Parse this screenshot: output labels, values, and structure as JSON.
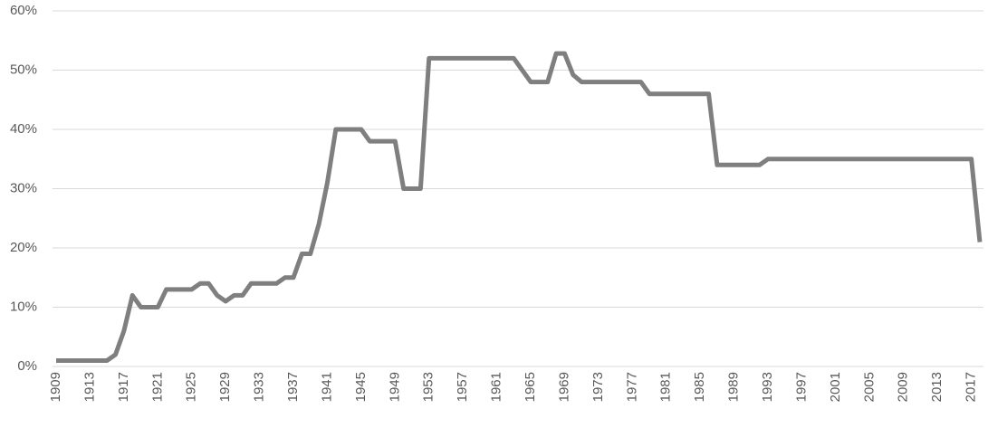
{
  "chart_data": {
    "type": "line",
    "categories": [
      "1909",
      null,
      null,
      null,
      "1913",
      null,
      null,
      null,
      "1917",
      null,
      null,
      null,
      "1921",
      null,
      null,
      null,
      "1925",
      null,
      null,
      null,
      "1929",
      null,
      null,
      null,
      "1933",
      null,
      null,
      null,
      "1937",
      null,
      null,
      null,
      "1941",
      null,
      null,
      null,
      "1945",
      null,
      null,
      null,
      "1949",
      null,
      null,
      null,
      "1953",
      null,
      null,
      null,
      "1957",
      null,
      null,
      null,
      "1961",
      null,
      null,
      null,
      "1965",
      null,
      null,
      null,
      "1969",
      null,
      null,
      null,
      "1973",
      null,
      null,
      null,
      "1977",
      null,
      null,
      null,
      "1981",
      null,
      null,
      null,
      "1985",
      null,
      null,
      null,
      "1989",
      null,
      null,
      null,
      "1993",
      null,
      null,
      null,
      "1997",
      null,
      null,
      null,
      "2001",
      null,
      null,
      null,
      "2005",
      null,
      null,
      null,
      "2009",
      null,
      null,
      null,
      "2013",
      null,
      null,
      null,
      "2017",
      null
    ],
    "values": [
      1,
      1,
      1,
      1,
      1,
      1,
      1,
      2,
      6,
      12,
      10,
      10,
      10,
      13,
      13,
      13,
      13,
      14,
      14,
      12,
      11,
      12,
      12,
      14,
      14,
      14,
      14,
      15,
      15,
      19,
      19,
      24,
      31,
      40,
      40,
      40,
      40,
      38,
      38,
      38,
      38,
      30,
      30,
      30,
      52,
      52,
      52,
      52,
      52,
      52,
      52,
      52,
      52,
      52,
      52,
      50,
      48,
      48,
      48,
      52.8,
      52.8,
      49.2,
      48,
      48,
      48,
      48,
      48,
      48,
      48,
      48,
      46,
      46,
      46,
      46,
      46,
      46,
      46,
      46,
      34,
      34,
      34,
      34,
      34,
      34,
      35,
      35,
      35,
      35,
      35,
      35,
      35,
      35,
      35,
      35,
      35,
      35,
      35,
      35,
      35,
      35,
      35,
      35,
      35,
      35,
      35,
      35,
      35,
      35,
      35,
      21
    ],
    "color": "#7f7f7f",
    "ylim": [
      0,
      60
    ],
    "yticks": [
      {
        "value": 0,
        "label": "0%"
      },
      {
        "value": 10,
        "label": "10%"
      },
      {
        "value": 20,
        "label": "20%"
      },
      {
        "value": 30,
        "label": "30%"
      },
      {
        "value": 40,
        "label": "40%"
      },
      {
        "value": 50,
        "label": "50%"
      },
      {
        "value": 60,
        "label": "60%"
      }
    ],
    "grid": true
  }
}
